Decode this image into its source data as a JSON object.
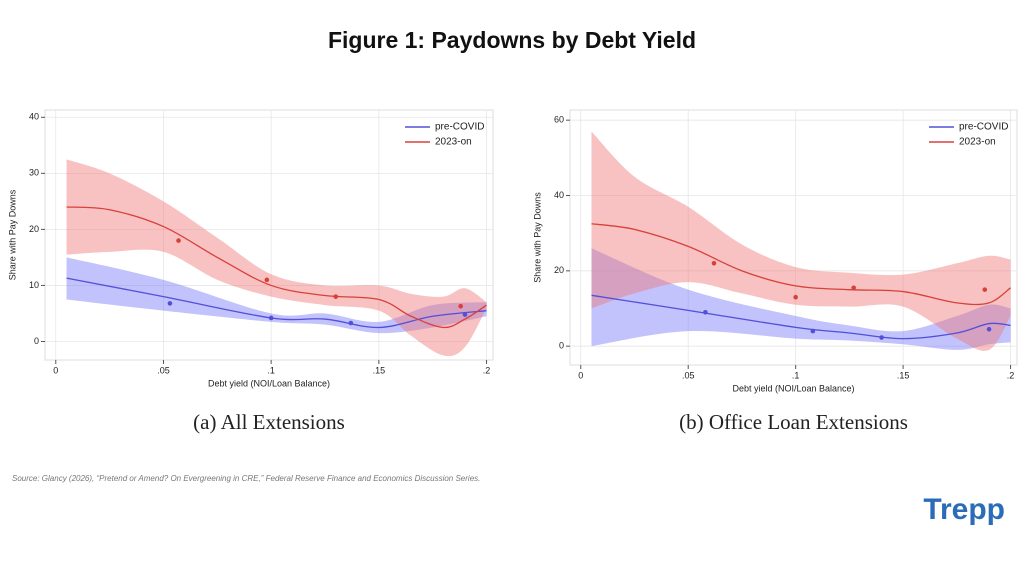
{
  "title": "Figure 1: Paydowns by Debt Yield",
  "source": "Source: Glancy (2026), “Pretend or Amend? On Evergreening in CRE,” Federal Reserve Finance and Economics Discussion Series.",
  "logo": "Trepp",
  "chart_data": [
    {
      "type": "line",
      "caption": "(a) All Extensions",
      "x_label": "Debt yield (NOI/Loan Balance)",
      "y_label": "Share with Pay Downs",
      "xlim": [
        -0.005,
        0.203
      ],
      "ylim": [
        -3.3,
        41.3
      ],
      "xticks": [
        0,
        {
          "value": 0.05,
          "label": ".05"
        },
        {
          "value": 0.1,
          "label": ".1"
        },
        {
          "value": 0.15,
          "label": ".15"
        },
        {
          "value": 0.2,
          "label": ".2"
        }
      ],
      "yticks": [
        0,
        10,
        20,
        30,
        40
      ],
      "grid": true,
      "legend": "top-right",
      "series": [
        {
          "name": "pre-COVID",
          "color": "#5050d8",
          "band_color": "rgba(120,120,250,0.45)",
          "x": [
            0.005,
            0.05,
            0.1,
            0.125,
            0.15,
            0.175,
            0.2
          ],
          "values": [
            11.3,
            8,
            4.2,
            4,
            2.5,
            4.5,
            5.5
          ],
          "lower": [
            7.5,
            5.5,
            3.5,
            3,
            1.5,
            2.5,
            4.5
          ],
          "upper": [
            15,
            11,
            5,
            5,
            3.5,
            6.5,
            7
          ],
          "points": {
            "x": [
              0.053,
              0.1,
              0.137,
              0.19
            ],
            "values": [
              6.8,
              4.2,
              3.3,
              4.8
            ]
          }
        },
        {
          "name": "2023-on",
          "color": "#d8403a",
          "band_color": "rgba(240,120,120,0.45)",
          "x": [
            0.005,
            0.025,
            0.05,
            0.075,
            0.1,
            0.125,
            0.15,
            0.165,
            0.18,
            0.19,
            0.2
          ],
          "values": [
            24,
            23.5,
            20.5,
            15,
            10,
            8.2,
            7.5,
            4.5,
            2.5,
            4,
            6.5
          ],
          "lower": [
            15.5,
            16,
            16,
            11,
            8,
            6.5,
            5.5,
            1,
            -2.5,
            -1,
            6
          ],
          "upper": [
            32.5,
            30,
            25,
            18.5,
            12,
            10,
            10,
            8.5,
            8,
            9.5,
            7
          ],
          "points": {
            "x": [
              0.057,
              0.098,
              0.13,
              0.188
            ],
            "values": [
              18,
              11,
              8,
              6.3
            ]
          }
        }
      ]
    },
    {
      "type": "line",
      "caption": "(b) Office Loan Extensions",
      "x_label": "Debt yield (NOI/Loan Balance)",
      "y_label": "Share with Pay Downs",
      "xlim": [
        -0.005,
        0.203
      ],
      "ylim": [
        -5,
        62.7
      ],
      "xticks": [
        0,
        {
          "value": 0.05,
          "label": ".05"
        },
        {
          "value": 0.1,
          "label": ".1"
        },
        {
          "value": 0.15,
          "label": ".15"
        },
        {
          "value": 0.2,
          "label": ".2"
        }
      ],
      "yticks": [
        0,
        20,
        40,
        60
      ],
      "grid": true,
      "legend": "top-right",
      "series": [
        {
          "name": "pre-COVID",
          "color": "#5050d8",
          "band_color": "rgba(120,120,250,0.45)",
          "x": [
            0.005,
            0.05,
            0.1,
            0.125,
            0.15,
            0.175,
            0.19,
            0.2
          ],
          "values": [
            13.5,
            9.5,
            5,
            3.5,
            2,
            3.5,
            6,
            5.5
          ],
          "lower": [
            0,
            4,
            2,
            1.5,
            0.5,
            -1,
            0.5,
            1
          ],
          "upper": [
            26,
            15,
            8,
            5.5,
            4,
            8,
            11,
            10
          ],
          "points": {
            "x": [
              0.058,
              0.108,
              0.14,
              0.19
            ],
            "values": [
              9,
              4,
              2.3,
              4.5
            ]
          }
        },
        {
          "name": "2023-on",
          "color": "#d8403a",
          "band_color": "rgba(240,120,120,0.45)",
          "x": [
            0.005,
            0.025,
            0.05,
            0.075,
            0.1,
            0.125,
            0.15,
            0.175,
            0.19,
            0.2
          ],
          "values": [
            32.5,
            31,
            26.5,
            20,
            16,
            15,
            14.5,
            11.5,
            11.5,
            15.5
          ],
          "lower": [
            10,
            14,
            17,
            14,
            11,
            10.5,
            10.5,
            2,
            -1,
            8
          ],
          "upper": [
            57,
            45,
            37,
            27,
            21,
            19.5,
            19,
            22,
            24,
            23
          ],
          "points": {
            "x": [
              0.062,
              0.1,
              0.127,
              0.188
            ],
            "values": [
              22,
              13,
              15.5,
              15
            ]
          }
        }
      ]
    }
  ]
}
